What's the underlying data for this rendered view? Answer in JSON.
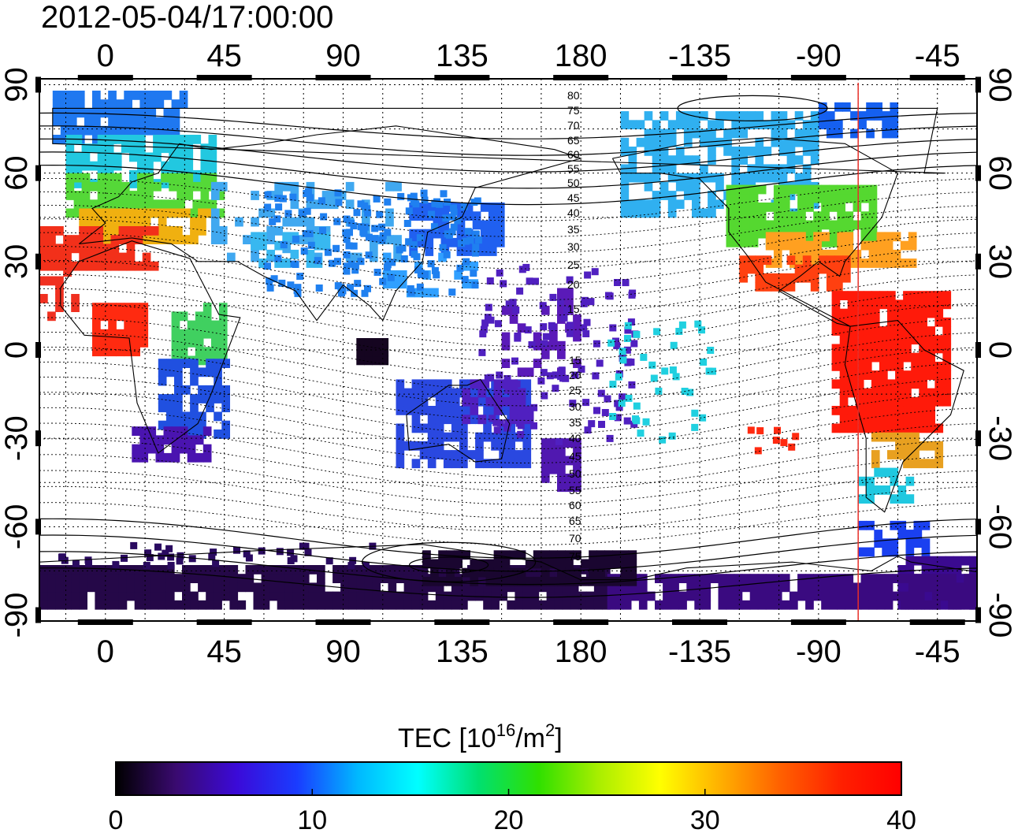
{
  "title": "2012-05-04/17:00:00",
  "map": {
    "lon_ticks_top": [
      "0",
      "45",
      "90",
      "135",
      "180",
      "-135",
      "-90",
      "-45"
    ],
    "lon_ticks_bottom": [
      "0",
      "45",
      "90",
      "135",
      "180",
      "-135",
      "-90",
      "-45"
    ],
    "lat_ticks_left": [
      "90",
      "60",
      "30",
      "0",
      "-30",
      "-60",
      "-90"
    ],
    "lat_ticks_right": [
      "90",
      "60",
      "30",
      "0",
      "-30",
      "-60",
      "-90"
    ],
    "lon_range": [
      -25,
      330
    ],
    "lat_range": [
      -92,
      92
    ],
    "grid": "dotted, 15 degree spacing",
    "terminator_longitude": -75,
    "terminator_color": "#e8302a"
  },
  "mag_lat_labels_north": [
    "80",
    "75",
    "70",
    "65",
    "60",
    "55",
    "50",
    "45",
    "40",
    "35",
    "30",
    "25",
    "20",
    "15"
  ],
  "mag_lat_labels_south": [
    "15",
    "20",
    "25",
    "30",
    "35",
    "40",
    "45",
    "50",
    "55",
    "60",
    "65",
    "70",
    "75"
  ],
  "tec_regions": [
    {
      "name": "north-atlantic-europe",
      "color": "#2a7bf0"
    },
    {
      "name": "europe-green",
      "color": "#4fd43a"
    },
    {
      "name": "mediterranean-red",
      "color": "#f23a1a"
    },
    {
      "name": "africa-east",
      "color": "#3cd060"
    },
    {
      "name": "africa-south",
      "color": "#2040d0"
    },
    {
      "name": "asia-east-blue",
      "color": "#2b5cf0"
    },
    {
      "name": "australia-blue",
      "color": "#3040d8"
    },
    {
      "name": "antarctica-dark",
      "color": "#2a0a52"
    },
    {
      "name": "north-america-green",
      "color": "#55d830"
    },
    {
      "name": "south-america-red",
      "color": "#ff1a0a"
    }
  ],
  "colorbar": {
    "label_prefix": "TEC  [10",
    "label_exp": "16",
    "label_mid": "/m",
    "label_exp2": "2",
    "label_suffix": "]",
    "ticks": [
      "0",
      "10",
      "20",
      "30",
      "40"
    ],
    "range": [
      0,
      40
    ],
    "colors": [
      "#000000",
      "#3a0a70",
      "#3b0ad8",
      "#1a3cff",
      "#00b8ff",
      "#00ffff",
      "#00e070",
      "#30e000",
      "#aaee00",
      "#ffff00",
      "#ffb000",
      "#ff6000",
      "#ff2000",
      "#ff0000"
    ]
  }
}
